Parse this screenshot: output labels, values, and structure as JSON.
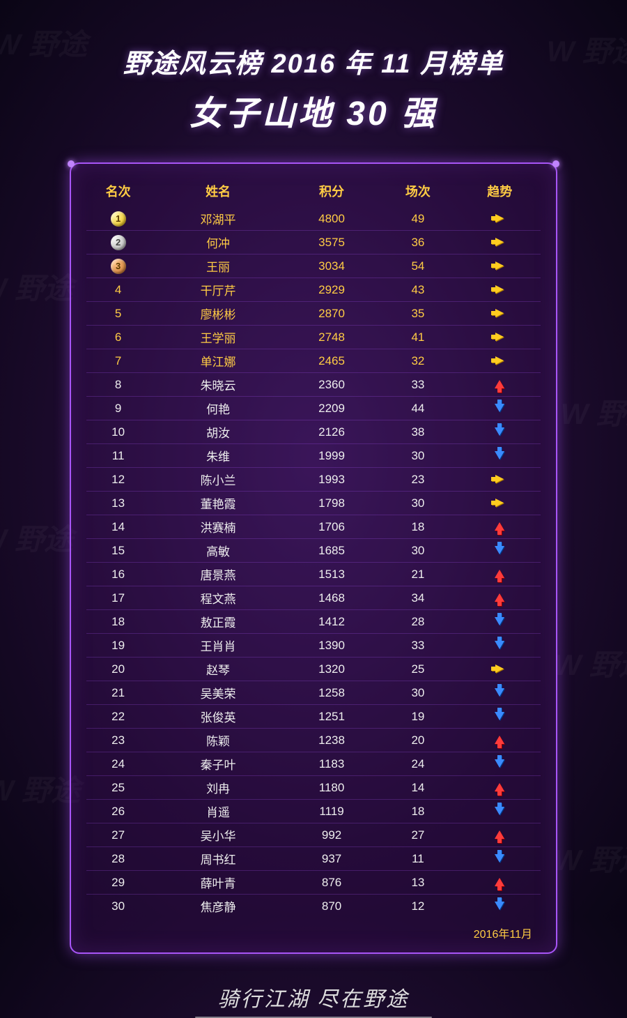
{
  "watermark_text": "野途",
  "header": {
    "title_main": "野途风云榜 2016 年 11 月榜单",
    "title_sub": "女子山地 30 强"
  },
  "table": {
    "columns": [
      "名次",
      "姓名",
      "积分",
      "场次",
      "趋势"
    ],
    "footer_date": "2016年11月",
    "colors": {
      "header_text": "#ffcc44",
      "top_row_text": "#ffcc44",
      "row_text": "#eeeeee",
      "border": "#a855f7",
      "panel_bg": "rgba(60,15,90,0.35)",
      "trend_same": "#ffcc20",
      "trend_up": "#ff3b3b",
      "trend_down": "#3b8bff",
      "medal_gold": "#e6b800",
      "medal_silver": "#a8a8a8",
      "medal_bronze": "#c26a1e"
    },
    "rows": [
      {
        "rank": 1,
        "medal": "gold",
        "name": "邓湖平",
        "points": 4800,
        "games": 49,
        "trend": "same"
      },
      {
        "rank": 2,
        "medal": "silver",
        "name": "何冲",
        "points": 3575,
        "games": 36,
        "trend": "same"
      },
      {
        "rank": 3,
        "medal": "bronze",
        "name": "王丽",
        "points": 3034,
        "games": 54,
        "trend": "same"
      },
      {
        "rank": 4,
        "name": "干厅芹",
        "points": 2929,
        "games": 43,
        "trend": "same"
      },
      {
        "rank": 5,
        "name": "廖彬彬",
        "points": 2870,
        "games": 35,
        "trend": "same"
      },
      {
        "rank": 6,
        "name": "王学丽",
        "points": 2748,
        "games": 41,
        "trend": "same"
      },
      {
        "rank": 7,
        "name": "单江娜",
        "points": 2465,
        "games": 32,
        "trend": "same"
      },
      {
        "rank": 8,
        "name": "朱晓云",
        "points": 2360,
        "games": 33,
        "trend": "up"
      },
      {
        "rank": 9,
        "name": "何艳",
        "points": 2209,
        "games": 44,
        "trend": "down"
      },
      {
        "rank": 10,
        "name": "胡汝",
        "points": 2126,
        "games": 38,
        "trend": "down"
      },
      {
        "rank": 11,
        "name": "朱维",
        "points": 1999,
        "games": 30,
        "trend": "down"
      },
      {
        "rank": 12,
        "name": "陈小兰",
        "points": 1993,
        "games": 23,
        "trend": "same"
      },
      {
        "rank": 13,
        "name": "董艳霞",
        "points": 1798,
        "games": 30,
        "trend": "same"
      },
      {
        "rank": 14,
        "name": "洪赛楠",
        "points": 1706,
        "games": 18,
        "trend": "up"
      },
      {
        "rank": 15,
        "name": "高敏",
        "points": 1685,
        "games": 30,
        "trend": "down"
      },
      {
        "rank": 16,
        "name": "唐景燕",
        "points": 1513,
        "games": 21,
        "trend": "up"
      },
      {
        "rank": 17,
        "name": "程文燕",
        "points": 1468,
        "games": 34,
        "trend": "up"
      },
      {
        "rank": 18,
        "name": "敖正霞",
        "points": 1412,
        "games": 28,
        "trend": "down"
      },
      {
        "rank": 19,
        "name": "王肖肖",
        "points": 1390,
        "games": 33,
        "trend": "down"
      },
      {
        "rank": 20,
        "name": "赵琴",
        "points": 1320,
        "games": 25,
        "trend": "same"
      },
      {
        "rank": 21,
        "name": "吴美荣",
        "points": 1258,
        "games": 30,
        "trend": "down"
      },
      {
        "rank": 22,
        "name": "张俊英",
        "points": 1251,
        "games": 19,
        "trend": "down"
      },
      {
        "rank": 23,
        "name": "陈颖",
        "points": 1238,
        "games": 20,
        "trend": "up"
      },
      {
        "rank": 24,
        "name": "秦子叶",
        "points": 1183,
        "games": 24,
        "trend": "down"
      },
      {
        "rank": 25,
        "name": "刘冉",
        "points": 1180,
        "games": 14,
        "trend": "up"
      },
      {
        "rank": 26,
        "name": "肖遥",
        "points": 1119,
        "games": 18,
        "trend": "down"
      },
      {
        "rank": 27,
        "name": "吴小华",
        "points": 992,
        "games": 27,
        "trend": "up"
      },
      {
        "rank": 28,
        "name": "周书红",
        "points": 937,
        "games": 11,
        "trend": "down"
      },
      {
        "rank": 29,
        "name": "薛叶青",
        "points": 876,
        "games": 13,
        "trend": "up"
      },
      {
        "rank": 30,
        "name": "焦彦静",
        "points": 870,
        "games": 12,
        "trend": "down"
      }
    ]
  },
  "slogan": "骑行江湖  尽在野途"
}
